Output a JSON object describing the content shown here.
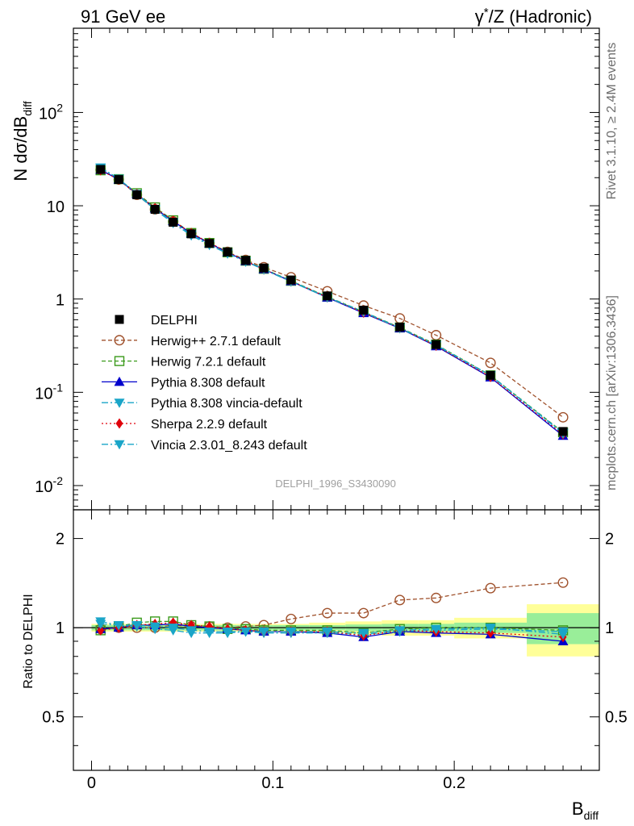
{
  "header": {
    "left": "91 GeV ee",
    "right_base": "γ",
    "right_sup": "*",
    "right_rest": "/Z (Hadronic)"
  },
  "side": {
    "rivet": "Rivet 3.1.10, ≥ 2.4M events",
    "mcplots": "mcplots.cern.ch [arXiv:1306.3436]"
  },
  "watermark": "DELPHI_1996_S3430090",
  "y_upper": {
    "label_main": "N dσ/dB",
    "label_sub": "diff",
    "ticks": [
      {
        "base": "10",
        "exp": "-2",
        "value": 0.01
      },
      {
        "base": "10",
        "exp": "-1",
        "value": 0.1
      },
      {
        "base": "1",
        "exp": "",
        "value": 1
      },
      {
        "base": "10",
        "exp": "",
        "value": 10
      },
      {
        "base": "10",
        "exp": "2",
        "value": 100
      }
    ]
  },
  "y_lower": {
    "label": "Ratio to DELPHI",
    "ticks": [
      {
        "text": "0.5",
        "value": 0.5
      },
      {
        "text": "1",
        "value": 1
      },
      {
        "text": "2",
        "value": 2
      }
    ]
  },
  "x_axis": {
    "label_main": "B",
    "label_sub": "diff",
    "ticks": [
      {
        "text": "0",
        "value": 0
      },
      {
        "text": "0.1",
        "value": 0.1
      },
      {
        "text": "0.2",
        "value": 0.2
      }
    ]
  },
  "chart_data": {
    "type": "line",
    "x_range": [
      -0.01,
      0.28
    ],
    "y_range_upper": [
      0.0055,
      800
    ],
    "log_y_upper": true,
    "y_range_lower": [
      0.33,
      2.5
    ],
    "log_y_lower": true,
    "x": [
      0.005,
      0.015,
      0.025,
      0.035,
      0.045,
      0.055,
      0.065,
      0.075,
      0.085,
      0.095,
      0.11,
      0.13,
      0.15,
      0.17,
      0.19,
      0.22,
      0.26
    ],
    "data_y": [
      24.5,
      19.1,
      13.1,
      9.15,
      6.65,
      5.0,
      3.95,
      3.2,
      2.6,
      2.15,
      1.6,
      1.08,
      0.76,
      0.5,
      0.325,
      0.152,
      0.038
    ],
    "band_edges": [
      0.0,
      0.01,
      0.02,
      0.03,
      0.04,
      0.05,
      0.06,
      0.07,
      0.08,
      0.09,
      0.1,
      0.12,
      0.14,
      0.16,
      0.18,
      0.2,
      0.24,
      0.28
    ],
    "stat_band": [
      0.02,
      0.02,
      0.02,
      0.02,
      0.02,
      0.02,
      0.02,
      0.02,
      0.02,
      0.02,
      0.02,
      0.02,
      0.025,
      0.03,
      0.03,
      0.04,
      0.12
    ],
    "total_band": [
      0.03,
      0.03,
      0.03,
      0.03,
      0.03,
      0.03,
      0.03,
      0.03,
      0.03,
      0.03,
      0.03,
      0.04,
      0.05,
      0.06,
      0.06,
      0.08,
      0.2
    ],
    "series": [
      {
        "name": "DELPHI",
        "color": "#000000",
        "marker": "square-filled",
        "line": "none",
        "ratio": [
          1,
          1,
          1,
          1,
          1,
          1,
          1,
          1,
          1,
          1,
          1,
          1,
          1,
          1,
          1,
          1,
          1
        ]
      },
      {
        "name": "Herwig++ 2.7.1 default",
        "color": "#a0522d",
        "marker": "circle-open",
        "line": "dashed",
        "ratio": [
          0.99,
          1.0,
          1.0,
          1.0,
          1.02,
          1.01,
          1.01,
          1.0,
          1.01,
          1.02,
          1.07,
          1.12,
          1.12,
          1.24,
          1.26,
          1.36,
          1.42
        ]
      },
      {
        "name": "Herwig 7.2.1 default",
        "color": "#3a9a1a",
        "marker": "square-open",
        "line": "dashed",
        "ratio": [
          0.98,
          1.01,
          1.04,
          1.05,
          1.05,
          1.02,
          1.01,
          0.99,
          0.99,
          0.98,
          0.98,
          0.98,
          0.96,
          0.99,
          1.0,
          1.0,
          0.98
        ]
      },
      {
        "name": "Pythia 8.308 default",
        "color": "#0000cc",
        "marker": "triangle-up-filled",
        "line": "solid",
        "ratio": [
          0.99,
          1.0,
          1.02,
          1.02,
          1.03,
          1.01,
          1.0,
          0.99,
          0.98,
          0.97,
          0.97,
          0.96,
          0.93,
          0.97,
          0.96,
          0.95,
          0.9
        ]
      },
      {
        "name": "Pythia 8.308 vincia-default",
        "color": "#1aa5c8",
        "marker": "triangle-down-filled",
        "line": "dashdot",
        "ratio": [
          1.05,
          1.02,
          1.01,
          0.99,
          0.98,
          0.96,
          0.96,
          0.96,
          0.97,
          0.96,
          0.96,
          0.96,
          0.95,
          0.97,
          0.98,
          0.99,
          0.97
        ]
      },
      {
        "name": "Sherpa 2.2.9 default",
        "color": "#e0000a",
        "marker": "diamond-filled",
        "line": "dotted",
        "ratio": [
          0.98,
          1.0,
          1.02,
          1.03,
          1.04,
          1.02,
          1.01,
          0.99,
          0.98,
          0.97,
          0.97,
          0.97,
          0.94,
          0.98,
          0.97,
          0.96,
          0.93
        ]
      },
      {
        "name": "Vincia 2.3.01_8.243 default",
        "color": "#1aa5c8",
        "marker": "triangle-down-filled",
        "line": "dashdot",
        "ratio": [
          1.03,
          1.02,
          1.02,
          1.01,
          1.0,
          0.98,
          0.97,
          0.97,
          0.97,
          0.97,
          0.97,
          0.97,
          0.96,
          0.98,
          0.99,
          1.0,
          0.95
        ]
      }
    ]
  }
}
